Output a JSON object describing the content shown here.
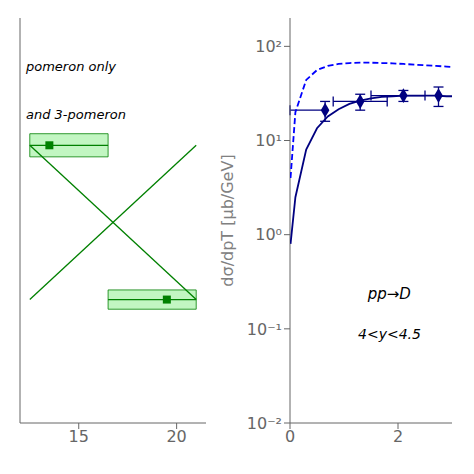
{
  "chart_data": [
    {
      "type": "line",
      "annotations": [
        "pomeron only",
        "and 3-pomeron"
      ],
      "xlim": [
        12.0,
        21.5
      ],
      "ylim": [
        0.0,
        1.05
      ],
      "xticks": [
        15,
        20
      ],
      "tick_labels": "x",
      "color": "#008000",
      "band_color": "#90EE90",
      "bands": [
        {
          "x": [
            12.5,
            16.5
          ],
          "y": 0.72,
          "dy": 0.03
        },
        {
          "x": [
            16.5,
            21.0
          ],
          "y": 0.32,
          "dy": 0.025
        }
      ],
      "lines": [
        {
          "x": [
            12.5,
            21.0
          ],
          "values": [
            0.72,
            0.32
          ]
        },
        {
          "x": [
            12.5,
            21.0
          ],
          "values": [
            0.32,
            0.72
          ]
        }
      ],
      "points": {
        "x": [
          13.5,
          19.5
        ],
        "values": [
          0.72,
          0.32
        ],
        "marker": "square"
      }
    },
    {
      "type": "line",
      "y_label": "dσ/dpT [μb/GeV]",
      "annotations": [
        "pp→D",
        "4<y<4.5"
      ],
      "log": "y",
      "xlim": [
        0,
        3.0
      ],
      "ylim": [
        0.01,
        200.0
      ],
      "xticks": [
        0,
        2
      ],
      "yticks": [
        {
          "value": 0.01,
          "label": "10⁻²"
        },
        {
          "value": 0.1,
          "label": "10⁻¹"
        },
        {
          "value": 1,
          "label": "10⁰"
        },
        {
          "value": 10,
          "label": "10¹"
        },
        {
          "value": 100,
          "label": "10²"
        }
      ],
      "series": [
        {
          "type": "line",
          "line_style": "solid",
          "color": "#000080",
          "x": [
            0.01,
            0.1,
            0.3,
            0.5,
            0.7,
            0.9,
            1.1,
            1.3,
            1.5,
            1.7,
            1.9,
            2.1,
            2.3,
            2.5,
            2.7,
            2.9,
            3.0
          ],
          "values": [
            0.8,
            2.5,
            8.0,
            13.5,
            18.0,
            21.5,
            24.5,
            26.5,
            28.0,
            29.0,
            29.5,
            30.0,
            30.0,
            30.0,
            30.0,
            29.5,
            29.5
          ]
        },
        {
          "type": "line",
          "line_style": "dashed",
          "color": "#0000FF",
          "x": [
            0.01,
            0.1,
            0.3,
            0.5,
            0.7,
            0.9,
            1.1,
            1.3,
            1.5,
            1.7,
            1.9,
            2.1,
            2.3,
            2.5,
            2.7,
            2.9,
            3.0
          ],
          "values": [
            4.0,
            20.0,
            44.0,
            56.0,
            62.0,
            65.0,
            66.5,
            67.0,
            67.0,
            66.5,
            66.0,
            65.0,
            64.0,
            63.0,
            62.0,
            61.0,
            60.5
          ]
        },
        {
          "type": "scatter",
          "marker": "diamond",
          "color": "#000080",
          "x": [
            0.65,
            1.3,
            2.1,
            2.75
          ],
          "values": [
            21.0,
            26.0,
            30.0,
            30.0
          ],
          "xerr_lo": [
            0.65,
            0.5,
            0.6,
            0.0
          ],
          "xerr_hi": [
            0.0,
            0.5,
            0.4,
            0.0
          ],
          "yerr_lo": [
            5.0,
            5.0,
            4.0,
            7.0
          ],
          "yerr_hi": [
            5.0,
            5.0,
            4.0,
            7.0
          ]
        }
      ]
    }
  ]
}
